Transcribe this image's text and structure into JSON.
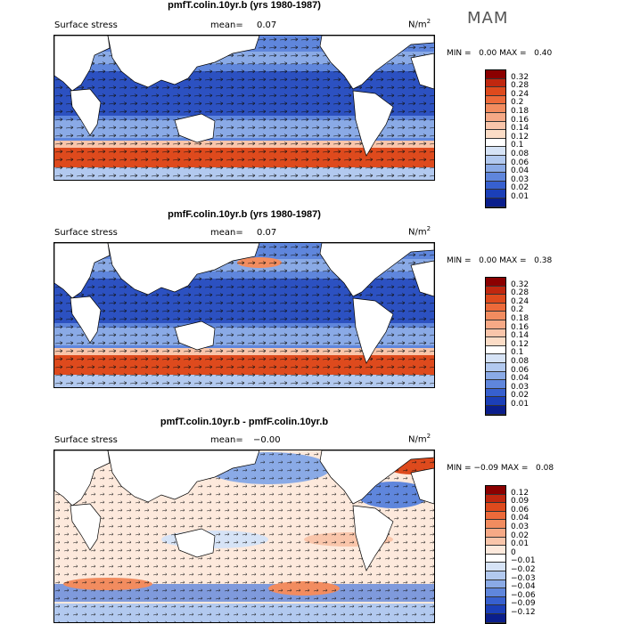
{
  "season_label": "MAM",
  "panels": [
    {
      "title": "pmfT.colin.10yr.b (yrs 1980-1987)",
      "variable": "Surface stress",
      "mean_label": "mean=",
      "mean_value": "0.07",
      "units": "N/m",
      "units_exp": "2",
      "min_label": "MIN =",
      "min_value": "0.00",
      "max_label": "MAX =",
      "max_value": "0.40",
      "colorbar": {
        "labels": [
          "0.32",
          "0.28",
          "0.24",
          "0.2",
          "0.18",
          "0.16",
          "0.14",
          "0.12",
          "0.1",
          "0.08",
          "0.06",
          "0.04",
          "0.03",
          "0.02",
          "0.01"
        ],
        "colors": [
          "#8b0000",
          "#c0270f",
          "#de4a1d",
          "#ed6a3a",
          "#f28c5f",
          "#f6a986",
          "#f9c5aa",
          "#fbdcc6",
          "#ffffff",
          "#d6e3f6",
          "#b2c9ef",
          "#8aaae6",
          "#5f86dc",
          "#3760cf",
          "#1b3fb8",
          "#0a1e8c"
        ]
      }
    },
    {
      "title": "pmfF.colin.10yr.b (yrs 1980-1987)",
      "variable": "Surface stress",
      "mean_label": "mean=",
      "mean_value": "0.07",
      "units": "N/m",
      "units_exp": "2",
      "min_label": "MIN =",
      "min_value": "0.00",
      "max_label": "MAX =",
      "max_value": "0.38",
      "colorbar": {
        "labels": [
          "0.32",
          "0.28",
          "0.24",
          "0.2",
          "0.18",
          "0.16",
          "0.14",
          "0.12",
          "0.1",
          "0.08",
          "0.06",
          "0.04",
          "0.03",
          "0.02",
          "0.01"
        ],
        "colors": [
          "#8b0000",
          "#c0270f",
          "#de4a1d",
          "#ed6a3a",
          "#f28c5f",
          "#f6a986",
          "#f9c5aa",
          "#fbdcc6",
          "#ffffff",
          "#d6e3f6",
          "#b2c9ef",
          "#8aaae6",
          "#5f86dc",
          "#3760cf",
          "#1b3fb8",
          "#0a1e8c"
        ]
      }
    },
    {
      "title": "pmfT.colin.10yr.b - pmfF.colin.10yr.b",
      "variable": "Surface stress",
      "mean_label": "mean=",
      "mean_value": "−0.00",
      "units": "N/m",
      "units_exp": "2",
      "min_label": "MIN =",
      "min_value": "−0.09",
      "max_label": "MAX =",
      "max_value": "0.08",
      "colorbar": {
        "labels": [
          "0.12",
          "0.09",
          "0.06",
          "0.04",
          "0.03",
          "0.02",
          "0.01",
          "0",
          "−0.01",
          "−0.02",
          "−0.03",
          "−0.04",
          "−0.06",
          "−0.09",
          "−0.12"
        ],
        "colors": [
          "#8b0000",
          "#c0270f",
          "#de4a1d",
          "#ed6a3a",
          "#f28c5f",
          "#f6a986",
          "#f9c5aa",
          "#fde9dc",
          "#ffffff",
          "#d6e3f6",
          "#b2c9ef",
          "#8aaae6",
          "#5f86dc",
          "#3760cf",
          "#1b3fb8",
          "#0a1e8c"
        ]
      }
    }
  ]
}
